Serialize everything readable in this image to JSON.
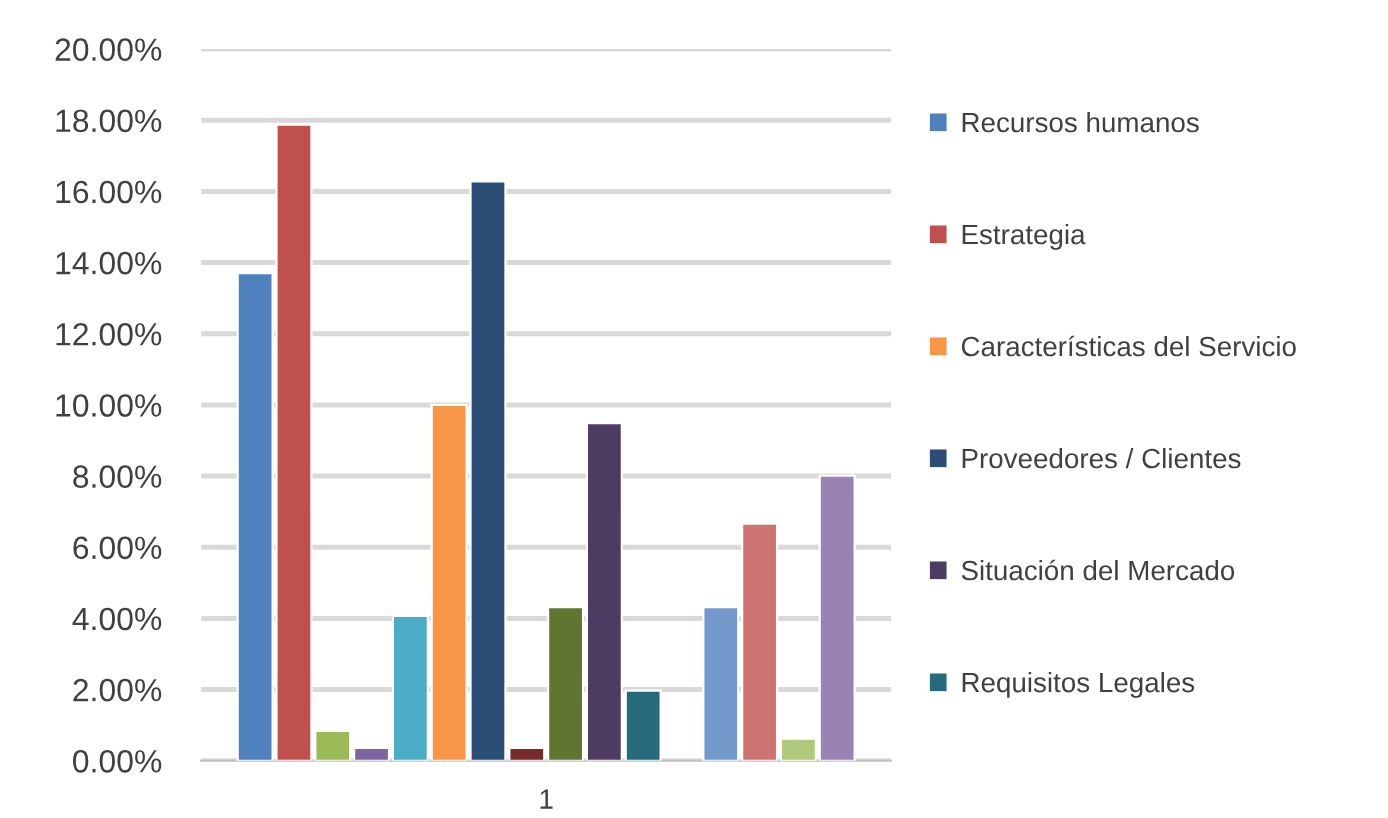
{
  "chart_data": {
    "type": "bar",
    "categories": [
      "1"
    ],
    "series": [
      {
        "name": "Recursos humanos",
        "color": "#4f81bd",
        "values": [
          13.7
        ]
      },
      {
        "name": "Estrategia",
        "color": "#c0504d",
        "values": [
          17.88
        ]
      },
      {
        "color": "#9bbb59",
        "values": [
          0.84
        ]
      },
      {
        "color": "#8064a2",
        "values": [
          0.36
        ]
      },
      {
        "color": "#4bacc6",
        "values": [
          4.07
        ]
      },
      {
        "name": "Características del Servicio",
        "color": "#f79646",
        "values": [
          10.0
        ]
      },
      {
        "name": "Proveedores / Clientes",
        "color": "#2c4d75",
        "values": [
          16.28
        ]
      },
      {
        "color": "#772c2a",
        "values": [
          0.36
        ]
      },
      {
        "color": "#5f7530",
        "values": [
          4.32
        ]
      },
      {
        "name": "Situación del Mercado",
        "color": "#4d3b62",
        "values": [
          9.49
        ]
      },
      {
        "name": "Requisitos Legales",
        "color": "#276a7c",
        "values": [
          1.97
        ]
      },
      {
        "color": "#b65708",
        "values": [
          null
        ]
      },
      {
        "color": "#7399cb",
        "values": [
          4.32
        ]
      },
      {
        "color": "#cd7371",
        "values": [
          6.66
        ]
      },
      {
        "color": "#afc97a",
        "values": [
          0.62
        ]
      },
      {
        "color": "#9983b5",
        "values": [
          8.01
        ]
      }
    ],
    "ylim": [
      0,
      20
    ],
    "yticks": [
      {
        "value": 0,
        "label": "0.00%"
      },
      {
        "value": 2,
        "label": "2.00%"
      },
      {
        "value": 4,
        "label": "4.00%"
      },
      {
        "value": 6,
        "label": "6.00%"
      },
      {
        "value": 8,
        "label": "8.00%"
      },
      {
        "value": 10,
        "label": "10.00%"
      },
      {
        "value": 12,
        "label": "12.00%"
      },
      {
        "value": 14,
        "label": "14.00%"
      },
      {
        "value": 16,
        "label": "16.00%"
      },
      {
        "value": 18,
        "label": "18.00%"
      },
      {
        "value": 20,
        "label": "20.00%"
      }
    ],
    "grid": "y",
    "legend": "right"
  }
}
